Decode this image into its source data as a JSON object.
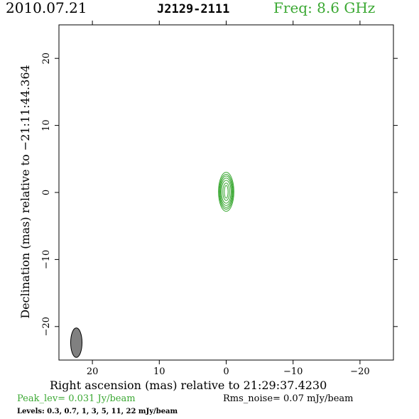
{
  "header": {
    "date": "2010.07.21",
    "source": "J2129-2111",
    "freq": "Freq: 8.6 GHz"
  },
  "footer": {
    "xlabel": "Right ascension (mas) relative to 21:29:37.4230",
    "peak": "Peak_lev=  0.031 Jy/beam",
    "rms": "Rms_noise= 0.07 mJy/beam",
    "levels": "Levels: 0.3, 0.7,   1,   3,   5,  11,  22 mJy/beam"
  },
  "colors": {
    "contour": "#3aa832",
    "accent_text": "#3aa832",
    "beam_fill": "#808080",
    "frame": "#000000"
  },
  "chart_data": {
    "type": "contour",
    "ylabel": "Declination (mas) relative to −21:11:44.364",
    "xlim": [
      25,
      -25
    ],
    "ylim": [
      -25,
      25
    ],
    "x_ticks": [
      20,
      10,
      0,
      -10,
      -20
    ],
    "x_tick_labels": [
      "20",
      "10",
      "0",
      "−10",
      "−20"
    ],
    "y_ticks": [
      20,
      10,
      0,
      -10,
      -20
    ],
    "y_tick_labels": [
      "20",
      "10",
      "0",
      "−10",
      "−20"
    ],
    "contour_levels_mJy": [
      0.3,
      0.7,
      1,
      3,
      5,
      11,
      22
    ],
    "source_component": {
      "x": 0,
      "y": 0.1,
      "contours": [
        {
          "a": 1.15,
          "b": 2.9
        },
        {
          "a": 1.05,
          "b": 2.6
        },
        {
          "a": 0.95,
          "b": 2.35
        },
        {
          "a": 0.85,
          "b": 2.05
        },
        {
          "a": 0.72,
          "b": 1.7
        },
        {
          "a": 0.5,
          "b": 1.3
        },
        {
          "a": 0.28,
          "b": 0.95
        }
      ]
    },
    "beam": {
      "x": 22.4,
      "y": -22.4,
      "major": 4.4,
      "minor": 1.7
    }
  }
}
